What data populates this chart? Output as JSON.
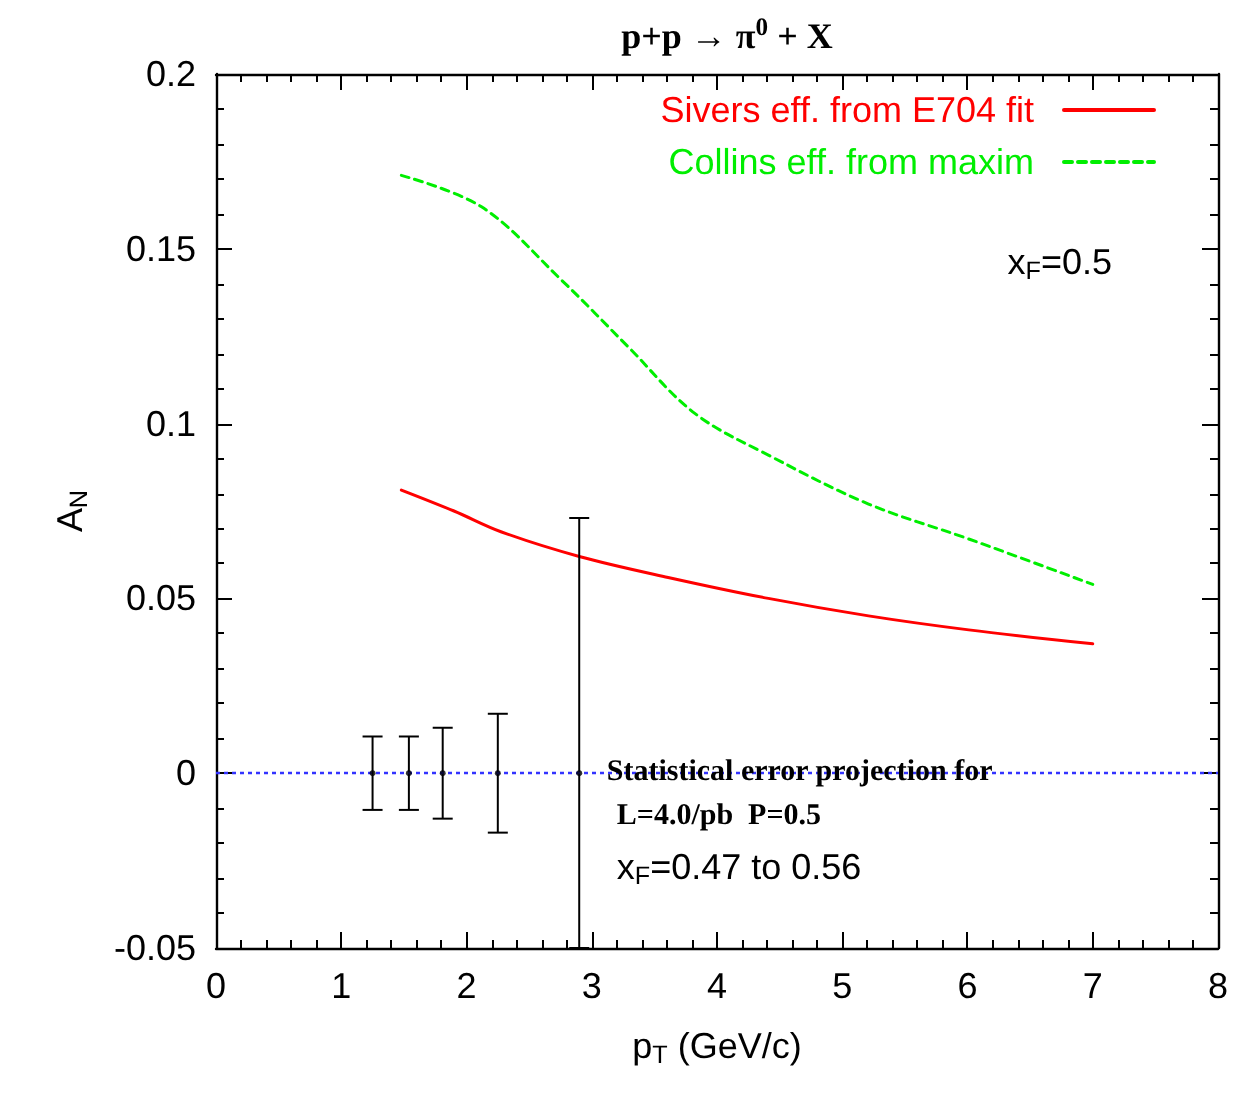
{
  "chart_data": {
    "type": "line",
    "title": "p+p → π$^{0}$ + X",
    "xlabel": "p$_{T}$ (GeV/c)",
    "ylabel": "A$_{N}$",
    "xlim": [
      0,
      8
    ],
    "xticks": [
      0,
      1,
      2,
      3,
      4,
      5,
      6,
      7,
      8
    ],
    "ylim": [
      -0.05,
      0.2
    ],
    "yticks": [
      -0.05,
      0,
      0.05,
      0.1,
      0.15,
      0.2
    ],
    "grid": false,
    "legend": "top right",
    "series": [
      {
        "name": "Sivers eff. from E704 fit",
        "color": "#ff0000",
        "line_style": "solid",
        "marker": "none",
        "x": [
          1.48,
          1.9,
          2.28,
          2.9,
          3.61,
          4.41,
          5.21,
          6.01,
          7.0
        ],
        "values": [
          0.081,
          0.075,
          0.069,
          0.062,
          0.056,
          0.05,
          0.045,
          0.041,
          0.037
        ]
      },
      {
        "name": "Collins eff. from maxim",
        "color": "#00ee00",
        "line_style": "dashed",
        "marker": "none",
        "x": [
          1.48,
          2.12,
          2.76,
          3.29,
          3.82,
          4.41,
          5.21,
          6.01,
          7.0
        ],
        "values": [
          0.171,
          0.162,
          0.141,
          0.122,
          0.103,
          0.091,
          0.077,
          0.067,
          0.054
        ]
      },
      {
        "type": "scatter",
        "color": "#000000",
        "x": [
          1.25,
          1.54,
          1.81,
          2.25,
          2.9
        ],
        "values": [
          0,
          0,
          0,
          0,
          0
        ],
        "errors": [
          0.0105,
          0.0105,
          0.013,
          0.017,
          [
            -0.05,
            0.073
          ]
        ]
      }
    ],
    "ref_lines": [
      {
        "axis": "y",
        "value": 0,
        "color": "#3333ff",
        "line_style": "dotted"
      }
    ],
    "annotations": [
      "x$_{F}$=0.5",
      "Statistical error projection for",
      "L=4.0/pb  P=0.5",
      "x$_{F}$=0.47 to 0.56"
    ]
  }
}
